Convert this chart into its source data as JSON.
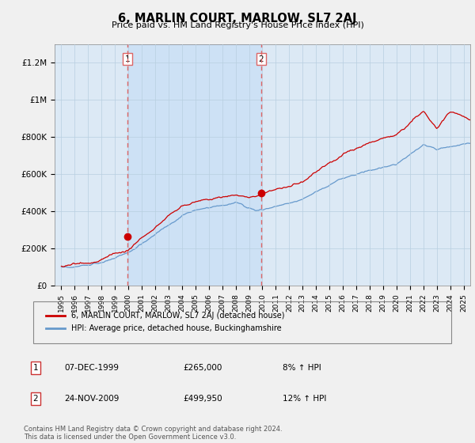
{
  "title": "6, MARLIN COURT, MARLOW, SL7 2AJ",
  "subtitle": "Price paid vs. HM Land Registry's House Price Index (HPI)",
  "background_color": "#f0f0f0",
  "plot_bg_color": "#dce9f5",
  "grid_color": "#b0c8e0",
  "ylabel_ticks": [
    "£0",
    "£200K",
    "£400K",
    "£600K",
    "£800K",
    "£1M",
    "£1.2M"
  ],
  "ytick_values": [
    0,
    200000,
    400000,
    600000,
    800000,
    1000000,
    1200000
  ],
  "ylim": [
    0,
    1300000
  ],
  "xlim_start": 1994.5,
  "xlim_end": 2025.5,
  "sale1_x": 1999.92,
  "sale1_y": 265000,
  "sale1_label": "1",
  "sale2_x": 2009.9,
  "sale2_y": 499950,
  "sale2_label": "2",
  "vline1_x": 1999.92,
  "vline2_x": 2009.9,
  "red_line_color": "#cc0000",
  "blue_line_color": "#6699cc",
  "vline_color": "#dd6666",
  "shade_color": "#ddeeff",
  "legend_label_red": "6, MARLIN COURT, MARLOW, SL7 2AJ (detached house)",
  "legend_label_blue": "HPI: Average price, detached house, Buckinghamshire",
  "table_row1": [
    "1",
    "07-DEC-1999",
    "£265,000",
    "8% ↑ HPI"
  ],
  "table_row2": [
    "2",
    "24-NOV-2009",
    "£499,950",
    "12% ↑ HPI"
  ],
  "footer": "Contains HM Land Registry data © Crown copyright and database right 2024.\nThis data is licensed under the Open Government Licence v3.0."
}
